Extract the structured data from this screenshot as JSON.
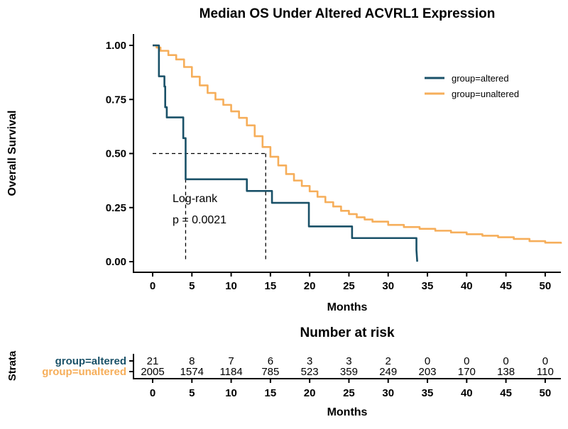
{
  "chart_data": {
    "type": "line",
    "title": "Median OS Under Altered ACVRL1 Expression",
    "xlabel": "Months",
    "ylabel": "Overall Survival",
    "xlim": [
      0,
      52
    ],
    "ylim": [
      0,
      1
    ],
    "x_ticks": [
      0,
      5,
      10,
      15,
      20,
      25,
      30,
      35,
      40,
      45,
      50
    ],
    "y_ticks": [
      "0.00",
      "0.25",
      "0.50",
      "0.75",
      "1.00"
    ],
    "legend_position": "top-right",
    "annotation": {
      "line1": "Log-rank",
      "line2": "p = 0.0021"
    },
    "median_reference": {
      "survival": 0.5,
      "altered_median_months": 4.2,
      "unaltered_median_months": 14.4
    },
    "series": [
      {
        "name": "group=altered",
        "color": "#1a5168",
        "steps": [
          [
            0,
            1.0
          ],
          [
            0.8,
            1.0
          ],
          [
            0.8,
            0.857
          ],
          [
            1.5,
            0.857
          ],
          [
            1.5,
            0.81
          ],
          [
            1.6,
            0.81
          ],
          [
            1.6,
            0.714
          ],
          [
            1.8,
            0.714
          ],
          [
            1.8,
            0.667
          ],
          [
            3.9,
            0.667
          ],
          [
            3.9,
            0.571
          ],
          [
            4.2,
            0.571
          ],
          [
            4.2,
            0.381
          ],
          [
            12.0,
            0.381
          ],
          [
            12.0,
            0.327
          ],
          [
            15.2,
            0.327
          ],
          [
            15.2,
            0.272
          ],
          [
            19.9,
            0.272
          ],
          [
            19.9,
            0.163
          ],
          [
            25.4,
            0.163
          ],
          [
            25.4,
            0.109
          ],
          [
            33.6,
            0.109
          ],
          [
            33.6,
            0.054
          ],
          [
            33.7,
            0.0
          ]
        ]
      },
      {
        "name": "group=unaltered",
        "color": "#f6ae5a",
        "points": [
          [
            0,
            1.0
          ],
          [
            0.5,
            0.99
          ],
          [
            1,
            0.975
          ],
          [
            2,
            0.955
          ],
          [
            3,
            0.935
          ],
          [
            4,
            0.9
          ],
          [
            5,
            0.855
          ],
          [
            6,
            0.815
          ],
          [
            7,
            0.78
          ],
          [
            8,
            0.75
          ],
          [
            9,
            0.725
          ],
          [
            10,
            0.695
          ],
          [
            11,
            0.665
          ],
          [
            12,
            0.63
          ],
          [
            13,
            0.58
          ],
          [
            14,
            0.53
          ],
          [
            15,
            0.485
          ],
          [
            16,
            0.445
          ],
          [
            17,
            0.405
          ],
          [
            18,
            0.375
          ],
          [
            19,
            0.35
          ],
          [
            20,
            0.325
          ],
          [
            21,
            0.3
          ],
          [
            22,
            0.275
          ],
          [
            23,
            0.255
          ],
          [
            24,
            0.235
          ],
          [
            25,
            0.22
          ],
          [
            26,
            0.205
          ],
          [
            27,
            0.195
          ],
          [
            28,
            0.185
          ],
          [
            30,
            0.17
          ],
          [
            32,
            0.16
          ],
          [
            34,
            0.152
          ],
          [
            36,
            0.143
          ],
          [
            38,
            0.135
          ],
          [
            40,
            0.127
          ],
          [
            42,
            0.12
          ],
          [
            44,
            0.113
          ],
          [
            46,
            0.105
          ],
          [
            48,
            0.095
          ],
          [
            50,
            0.088
          ],
          [
            52,
            0.083
          ]
        ]
      }
    ]
  },
  "risk_table": {
    "title": "Number at risk",
    "ylabel": "Strata",
    "xlabel": "Months",
    "times": [
      0,
      5,
      10,
      15,
      20,
      25,
      30,
      35,
      40,
      45,
      50
    ],
    "rows": [
      {
        "label": "group=altered",
        "color": "#1a5168",
        "counts": [
          21,
          8,
          7,
          6,
          3,
          3,
          2,
          0,
          0,
          0,
          0
        ]
      },
      {
        "label": "group=unaltered",
        "color": "#f6ae5a",
        "counts": [
          2005,
          1574,
          1184,
          785,
          523,
          359,
          249,
          203,
          170,
          138,
          110
        ]
      }
    ]
  }
}
